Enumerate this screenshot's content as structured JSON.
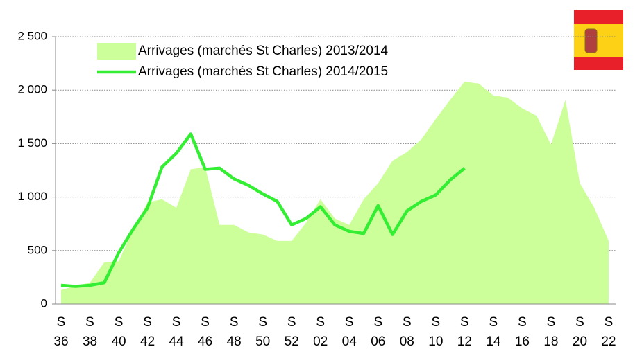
{
  "chart_data": {
    "type": "area_line",
    "categories": [
      "S 36",
      null,
      "S 38",
      null,
      "S 40",
      null,
      "S 42",
      null,
      "S 44",
      null,
      "S 46",
      null,
      "S 48",
      null,
      "S 50",
      null,
      "S 52",
      null,
      "S 02",
      null,
      "S 04",
      null,
      "S 06",
      null,
      "S 08",
      null,
      "S 10",
      null,
      "S 12",
      null,
      "S 14",
      null,
      "S 16",
      null,
      "S 18",
      null,
      "S 20",
      null,
      "S 22"
    ],
    "series": [
      {
        "name": "Arrivages (marchés St Charles) 2013/2014",
        "color": "#ccff99",
        "style": "area",
        "values": [
          130,
          170,
          200,
          390,
          400,
          700,
          950,
          980,
          900,
          1260,
          1280,
          740,
          740,
          670,
          650,
          590,
          590,
          760,
          980,
          800,
          740,
          980,
          1130,
          1340,
          1420,
          1540,
          1730,
          1910,
          2080,
          2060,
          1950,
          1930,
          1830,
          1760,
          1490,
          1910,
          1130,
          900,
          590
        ]
      },
      {
        "name": "Arrivages (marchés St Charles) 2014/2015",
        "color": "#33ee33",
        "style": "line",
        "values": [
          175,
          165,
          175,
          200,
          480,
          700,
          900,
          1280,
          1410,
          1590,
          1260,
          1270,
          1170,
          1110,
          1030,
          960,
          740,
          800,
          910,
          740,
          680,
          660,
          920,
          650,
          870,
          960,
          1020,
          1160,
          1270,
          null,
          null,
          null,
          null,
          null,
          null,
          null,
          null,
          null,
          null
        ]
      }
    ],
    "ylim": [
      0,
      2500
    ],
    "yticks": [
      0,
      500,
      {
        "value": 1000,
        "label": "1 000"
      },
      {
        "value": 1500,
        "label": "1 500"
      },
      {
        "value": 2000,
        "label": "2 000"
      },
      {
        "value": 2500,
        "label": "2 500"
      }
    ],
    "grid": true
  }
}
